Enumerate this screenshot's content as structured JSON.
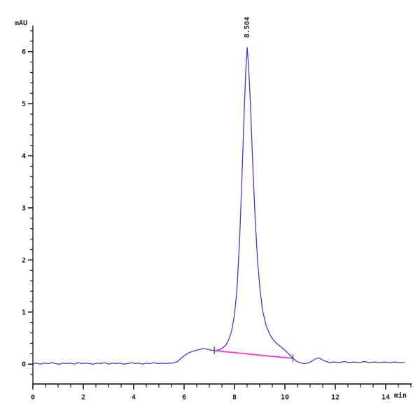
{
  "chart_data": {
    "type": "line",
    "title": "",
    "ylabel": "mAU",
    "xlabel": "min",
    "xlim": [
      0,
      15
    ],
    "ylim": [
      -0.38,
      6.5
    ],
    "x_major_ticks": [
      0,
      2,
      4,
      6,
      8,
      10,
      12,
      14
    ],
    "x_minor_step": 0.5,
    "y_major_ticks": [
      0,
      1,
      2,
      3,
      4,
      5,
      6
    ],
    "y_minor_step": 0.2,
    "grid": false,
    "legend": "none",
    "peak": {
      "label": "8.504",
      "x": 8.504,
      "y": 6.08
    },
    "colors": {
      "signal": "#3d3dd8",
      "baseline": "#ff2ce0",
      "axis": "#1c1c1c",
      "text": "#1c1c1c",
      "marker": "#3a3a55",
      "background": "#ffffff"
    },
    "series": [
      {
        "name": "signal",
        "points": [
          [
            0,
            0.01
          ],
          [
            0.15,
            0.02
          ],
          [
            0.3,
            0
          ],
          [
            0.45,
            0.02
          ],
          [
            0.6,
            0.01
          ],
          [
            0.75,
            0.03
          ],
          [
            0.9,
            0.01
          ],
          [
            1.05,
            0
          ],
          [
            1.2,
            0.02
          ],
          [
            1.35,
            0.01
          ],
          [
            1.5,
            0.02
          ],
          [
            1.65,
            0
          ],
          [
            1.8,
            0.03
          ],
          [
            1.95,
            0.01
          ],
          [
            2.1,
            0.02
          ],
          [
            2.25,
            0.01
          ],
          [
            2.4,
            0
          ],
          [
            2.55,
            0.02
          ],
          [
            2.7,
            0.01
          ],
          [
            2.85,
            0.03
          ],
          [
            3,
            0
          ],
          [
            3.15,
            0.02
          ],
          [
            3.3,
            0.01
          ],
          [
            3.45,
            0.02
          ],
          [
            3.6,
            0
          ],
          [
            3.75,
            0.01
          ],
          [
            3.9,
            0.03
          ],
          [
            4.05,
            0.01
          ],
          [
            4.2,
            0.02
          ],
          [
            4.35,
            0
          ],
          [
            4.5,
            0.02
          ],
          [
            4.65,
            0.01
          ],
          [
            4.8,
            0.03
          ],
          [
            4.95,
            0.01
          ],
          [
            5.1,
            0.02
          ],
          [
            5.25,
            0.01
          ],
          [
            5.4,
            0.02
          ],
          [
            5.55,
            0.02
          ],
          [
            5.7,
            0.04
          ],
          [
            5.85,
            0.1
          ],
          [
            6,
            0.16
          ],
          [
            6.15,
            0.21
          ],
          [
            6.3,
            0.24
          ],
          [
            6.45,
            0.26
          ],
          [
            6.6,
            0.28
          ],
          [
            6.75,
            0.3
          ],
          [
            6.9,
            0.29
          ],
          [
            7.05,
            0.27
          ],
          [
            7.2,
            0.26
          ],
          [
            7.35,
            0.27
          ],
          [
            7.5,
            0.3
          ],
          [
            7.65,
            0.36
          ],
          [
            7.8,
            0.5
          ],
          [
            7.9,
            0.67
          ],
          [
            8,
            0.95
          ],
          [
            8.1,
            1.45
          ],
          [
            8.2,
            2.35
          ],
          [
            8.3,
            3.65
          ],
          [
            8.4,
            5.05
          ],
          [
            8.45,
            5.65
          ],
          [
            8.504,
            6.08
          ],
          [
            8.56,
            5.7
          ],
          [
            8.63,
            5
          ],
          [
            8.72,
            3.9
          ],
          [
            8.82,
            2.8
          ],
          [
            8.92,
            1.95
          ],
          [
            9.02,
            1.4
          ],
          [
            9.12,
            1.02
          ],
          [
            9.25,
            0.75
          ],
          [
            9.4,
            0.57
          ],
          [
            9.55,
            0.46
          ],
          [
            9.7,
            0.39
          ],
          [
            9.85,
            0.33
          ],
          [
            10,
            0.27
          ],
          [
            10.15,
            0.2
          ],
          [
            10.3,
            0.12
          ],
          [
            10.45,
            0.06
          ],
          [
            10.6,
            0.03
          ],
          [
            10.75,
            0.01
          ],
          [
            10.9,
            0.02
          ],
          [
            11.05,
            0.05
          ],
          [
            11.2,
            0.1
          ],
          [
            11.35,
            0.12
          ],
          [
            11.5,
            0.08
          ],
          [
            11.65,
            0.05
          ],
          [
            11.8,
            0.03
          ],
          [
            11.95,
            0.04
          ],
          [
            12.15,
            0.03
          ],
          [
            12.35,
            0.05
          ],
          [
            12.55,
            0.03
          ],
          [
            12.75,
            0.04
          ],
          [
            12.95,
            0.03
          ],
          [
            13.15,
            0.05
          ],
          [
            13.35,
            0.03
          ],
          [
            13.55,
            0.04
          ],
          [
            13.75,
            0.03
          ],
          [
            13.95,
            0.04
          ],
          [
            14.15,
            0.03
          ],
          [
            14.35,
            0.04
          ],
          [
            14.55,
            0.03
          ],
          [
            14.75,
            0.03
          ]
        ]
      },
      {
        "name": "integration-baseline",
        "points": [
          [
            7.2,
            0.26
          ],
          [
            10.32,
            0.11
          ]
        ]
      }
    ],
    "integration_markers": [
      {
        "x": 7.2,
        "y": 0.26
      },
      {
        "x": 10.32,
        "y": 0.11
      }
    ]
  }
}
